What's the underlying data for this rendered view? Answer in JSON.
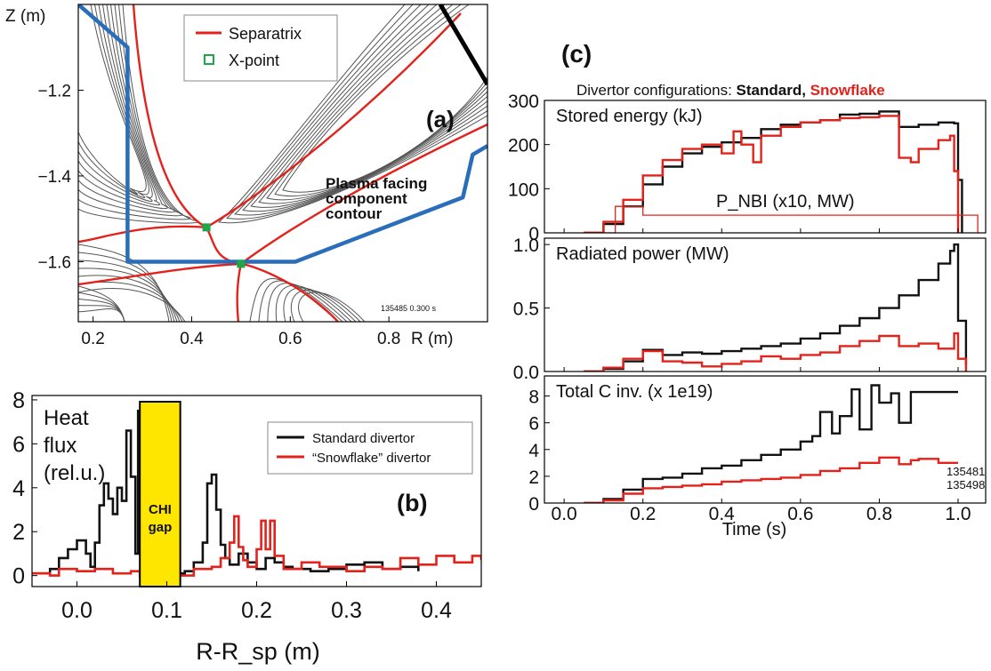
{
  "colors": {
    "standard": "#111111",
    "snowflake": "#e3231b",
    "pfc": "#2a6ebb",
    "xpoint": "#1fa64a",
    "panel_label": "#2b4aa8",
    "gap": "#ffe600"
  },
  "chart_data": [
    {
      "id": "a",
      "type": "diagram",
      "panel_label": "(a)",
      "xlabel": "R (m)",
      "ylabel": "Z (m)",
      "x_ticks": [
        "0.2",
        "0.4",
        "0.6",
        "0.8"
      ],
      "y_ticks": [
        "-1.2",
        "-1.4",
        "-1.6"
      ],
      "xlim": [
        0.17,
        1.0
      ],
      "ylim": [
        -1.74,
        -1.0
      ],
      "legend": [
        {
          "name": "Separatrix",
          "symbol": "line",
          "color": "#e3231b"
        },
        {
          "name": "X-point",
          "symbol": "square",
          "color": "#1fa64a"
        }
      ],
      "annotation": "Plasma facing\ncomponent\ncontour",
      "shot_label": "135485 0.300 s",
      "xpoints": [
        [
          0.43,
          -1.52
        ],
        [
          0.5,
          -1.605
        ]
      ],
      "pfc_contour": [
        [
          0.17,
          -1.0
        ],
        [
          0.27,
          -1.1
        ],
        [
          0.27,
          -1.6
        ],
        [
          0.61,
          -1.6
        ],
        [
          0.95,
          -1.45
        ],
        [
          0.97,
          -1.35
        ],
        [
          1.0,
          -1.33
        ]
      ]
    },
    {
      "id": "b",
      "type": "line",
      "panel_label": "(b)",
      "xlabel": "R-R_sp (m)",
      "ylabel": "Heat\nflux\n(rel.u.)",
      "xlim": [
        -0.05,
        0.45
      ],
      "ylim": [
        -0.5,
        8.2
      ],
      "x_ticks": [
        "0.0",
        "0.1",
        "0.2",
        "0.3",
        "0.4"
      ],
      "y_ticks": [
        "0",
        "2",
        "4",
        "6",
        "8"
      ],
      "gap_label": "CHI\ngap",
      "gap_range": [
        0.07,
        0.115
      ],
      "series": [
        {
          "name": "Standard divertor",
          "color": "#111111",
          "x": [
            -0.05,
            -0.03,
            -0.02,
            -0.01,
            0.0,
            0.01,
            0.015,
            0.02,
            0.025,
            0.03,
            0.035,
            0.04,
            0.045,
            0.05,
            0.055,
            0.06,
            0.065,
            0.068,
            0.07,
            0.072,
            0.076,
            0.12,
            0.13,
            0.14,
            0.145,
            0.15,
            0.155,
            0.16,
            0.165,
            0.17,
            0.18,
            0.19,
            0.2,
            0.21,
            0.22,
            0.23,
            0.24,
            0.26,
            0.28,
            0.3,
            0.32,
            0.34,
            0.36,
            0.38
          ],
          "y": [
            0.1,
            0.3,
            0.8,
            1.2,
            1.6,
            1.0,
            0.4,
            1.5,
            3.2,
            4.2,
            3.5,
            2.8,
            4.0,
            3.4,
            6.6,
            4.5,
            1.0,
            7.5,
            1.0,
            7.6,
            0.1,
            0.2,
            0.6,
            1.5,
            4.2,
            4.6,
            3.0,
            1.4,
            0.8,
            0.5,
            1.0,
            0.6,
            0.3,
            0.8,
            0.6,
            0.4,
            0.3,
            0.2,
            0.3,
            0.5,
            0.6,
            0.3,
            0.4,
            0.2
          ]
        },
        {
          "name": "“Snowflake” divertor",
          "color": "#e3231b",
          "x": [
            -0.05,
            -0.03,
            -0.02,
            0.0,
            0.02,
            0.04,
            0.06,
            0.07,
            0.115,
            0.13,
            0.15,
            0.16,
            0.17,
            0.175,
            0.18,
            0.185,
            0.19,
            0.2,
            0.205,
            0.21,
            0.215,
            0.22,
            0.23,
            0.25,
            0.27,
            0.3,
            0.32,
            0.34,
            0.36,
            0.38,
            0.4,
            0.42,
            0.44,
            0.45
          ],
          "y": [
            0.1,
            0.0,
            0.3,
            0.2,
            0.3,
            0.1,
            0.2,
            0.0,
            0.0,
            0.3,
            0.4,
            0.8,
            1.5,
            2.7,
            1.3,
            0.7,
            0.4,
            1.2,
            2.5,
            1.2,
            2.5,
            0.9,
            0.3,
            0.6,
            0.4,
            0.2,
            0.4,
            0.3,
            0.8,
            0.5,
            0.9,
            0.6,
            0.9,
            0.7
          ]
        }
      ]
    },
    {
      "id": "c",
      "type": "line",
      "panel_label": "(c)",
      "header_prefix": "Divertor configurations: ",
      "header_standard": "Standard,",
      "header_snowflake": " Snowflake",
      "xlabel": "Time (s)",
      "xlim": [
        -0.05,
        1.07
      ],
      "x_ticks": [
        "0.0",
        "0.2",
        "0.4",
        "0.6",
        "0.8",
        "1.0"
      ],
      "subplots": [
        {
          "title": "Stored energy (kJ)",
          "ylim": [
            0,
            300
          ],
          "y_ticks": [
            "300",
            "200",
            "100",
            "0"
          ],
          "annotation": "P_NBI (x10, MW)",
          "series": [
            {
              "name": "Standard",
              "color": "#111111",
              "x": [
                0.05,
                0.1,
                0.15,
                0.2,
                0.25,
                0.3,
                0.35,
                0.4,
                0.45,
                0.5,
                0.55,
                0.6,
                0.65,
                0.7,
                0.75,
                0.8,
                0.85,
                0.9,
                0.95,
                0.99,
                1.0,
                1.01
              ],
              "y": [
                0,
                20,
                60,
                110,
                150,
                180,
                195,
                205,
                215,
                235,
                245,
                250,
                255,
                268,
                270,
                275,
                240,
                245,
                250,
                248,
                120,
                0
              ]
            },
            {
              "name": "Snowflake",
              "color": "#e3231b",
              "x": [
                0.05,
                0.1,
                0.15,
                0.2,
                0.25,
                0.3,
                0.35,
                0.4,
                0.43,
                0.45,
                0.48,
                0.5,
                0.55,
                0.6,
                0.65,
                0.7,
                0.75,
                0.8,
                0.85,
                0.88,
                0.9,
                0.95,
                0.98,
                0.99,
                1.0
              ],
              "y": [
                0,
                25,
                75,
                130,
                165,
                190,
                200,
                180,
                230,
                200,
                160,
                220,
                240,
                250,
                255,
                260,
                262,
                265,
                170,
                160,
                190,
                210,
                220,
                140,
                0
              ]
            },
            {
              "name": "P_NBI",
              "color": "#e3231b",
              "x": [
                0.05,
                0.13,
                0.13,
                0.2,
                0.2,
                1.0,
                1.0,
                1.05
              ],
              "y": [
                0,
                0,
                60,
                60,
                40,
                40,
                40,
                0
              ]
            }
          ]
        },
        {
          "title": "Radiated power (MW)",
          "ylim": [
            0,
            1.05
          ],
          "y_ticks": [
            "1.0",
            "0.5",
            "0.0"
          ],
          "series": [
            {
              "name": "Standard",
              "color": "#111111",
              "x": [
                0.05,
                0.1,
                0.15,
                0.2,
                0.25,
                0.3,
                0.35,
                0.4,
                0.45,
                0.5,
                0.55,
                0.6,
                0.65,
                0.7,
                0.75,
                0.8,
                0.85,
                0.9,
                0.95,
                0.98,
                0.99,
                1.0,
                1.02
              ],
              "y": [
                0,
                0.02,
                0.08,
                0.17,
                0.13,
                0.15,
                0.14,
                0.16,
                0.18,
                0.2,
                0.22,
                0.26,
                0.3,
                0.36,
                0.42,
                0.5,
                0.6,
                0.72,
                0.85,
                0.95,
                1.0,
                0.4,
                0.05
              ]
            },
            {
              "name": "Snowflake",
              "color": "#e3231b",
              "x": [
                0.05,
                0.1,
                0.15,
                0.2,
                0.25,
                0.3,
                0.35,
                0.4,
                0.45,
                0.5,
                0.55,
                0.6,
                0.65,
                0.7,
                0.75,
                0.8,
                0.85,
                0.9,
                0.95,
                0.99,
                1.0,
                1.02
              ],
              "y": [
                0,
                0.03,
                0.1,
                0.16,
                0.08,
                0.07,
                0.04,
                0.06,
                0.08,
                0.12,
                0.1,
                0.13,
                0.15,
                0.2,
                0.24,
                0.28,
                0.2,
                0.22,
                0.18,
                0.3,
                0.1,
                0.0
              ]
            }
          ]
        },
        {
          "title": "Total C inv. (x 1e19)",
          "ylim": [
            0,
            9.5
          ],
          "y_ticks": [
            "8",
            "6",
            "4",
            "2",
            "0"
          ],
          "shot_labels": [
            {
              "text": "135481",
              "color": "#111111"
            },
            {
              "text": "135498",
              "color": "#e3231b"
            }
          ],
          "series": [
            {
              "name": "Standard",
              "color": "#111111",
              "x": [
                0.05,
                0.1,
                0.15,
                0.2,
                0.25,
                0.3,
                0.35,
                0.4,
                0.45,
                0.5,
                0.55,
                0.6,
                0.63,
                0.65,
                0.68,
                0.7,
                0.73,
                0.75,
                0.78,
                0.8,
                0.83,
                0.85,
                0.88,
                0.9,
                0.95,
                1.0
              ],
              "y": [
                0,
                0.3,
                1.0,
                1.8,
                1.9,
                2.2,
                2.6,
                2.8,
                3.2,
                3.6,
                4.0,
                4.6,
                5.0,
                6.8,
                5.2,
                6.5,
                8.5,
                5.5,
                8.8,
                7.5,
                8.2,
                6.0,
                8.3,
                8.3,
                8.3,
                8.3
              ]
            },
            {
              "name": "Snowflake",
              "color": "#e3231b",
              "x": [
                0.05,
                0.1,
                0.15,
                0.2,
                0.25,
                0.3,
                0.35,
                0.4,
                0.45,
                0.5,
                0.55,
                0.6,
                0.65,
                0.7,
                0.75,
                0.8,
                0.85,
                0.88,
                0.9,
                0.95,
                1.0
              ],
              "y": [
                0,
                0.2,
                0.7,
                1.1,
                1.2,
                1.3,
                1.4,
                1.6,
                1.7,
                1.8,
                1.9,
                2.1,
                2.4,
                2.6,
                3.0,
                3.4,
                2.9,
                3.2,
                3.3,
                3.0,
                3.0
              ]
            }
          ]
        }
      ]
    }
  ]
}
